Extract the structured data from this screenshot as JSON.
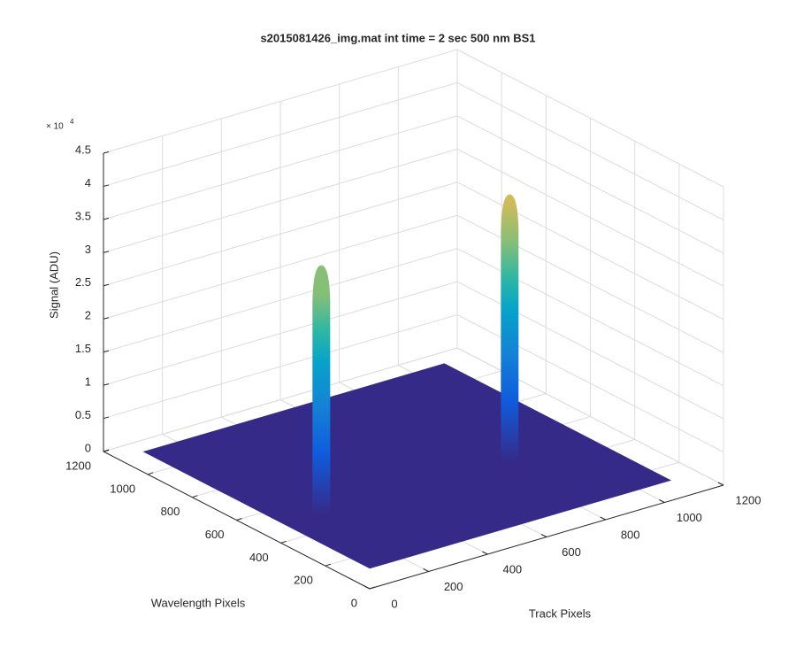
{
  "chart_data": {
    "type": "surface",
    "title": "s2015081426_img.mat int time = 2 sec  500 nm BS1",
    "xlabel": "Track Pixels",
    "ylabel": "Wavelength Pixels",
    "zlabel": "Signal (ADU)",
    "z_multiplier": {
      "base": "× 10",
      "exponent": "4"
    },
    "xlim": [
      0,
      1200
    ],
    "xticks": [
      0,
      200,
      400,
      600,
      800,
      1000,
      1200
    ],
    "ylim": [
      0,
      1200
    ],
    "yticks": [
      0,
      200,
      400,
      600,
      800,
      1000,
      1200
    ],
    "zlim": [
      0,
      45000
    ],
    "zticks": [
      0,
      {
        "value": 5000,
        "label": "0.5"
      },
      {
        "value": 10000,
        "label": "1"
      },
      {
        "value": 15000,
        "label": "1.5"
      },
      {
        "value": 20000,
        "label": "2"
      },
      {
        "value": 25000,
        "label": "2.5"
      },
      {
        "value": 30000,
        "label": "3"
      },
      {
        "value": 35000,
        "label": "3.5"
      },
      {
        "value": 40000,
        "label": "4"
      },
      {
        "value": 45000,
        "label": "4.5"
      }
    ],
    "grid": true,
    "colormap": "parula",
    "surface": {
      "base": 3000,
      "track_range": [
        1,
        1024
      ],
      "wavelength_range": [
        1,
        1024
      ],
      "color": "#352a87"
    },
    "peaks": [
      {
        "track": 234,
        "wavelength": 529,
        "height": 36600
      },
      {
        "track": 864,
        "wavelength": 517,
        "height": 39300
      }
    ]
  }
}
